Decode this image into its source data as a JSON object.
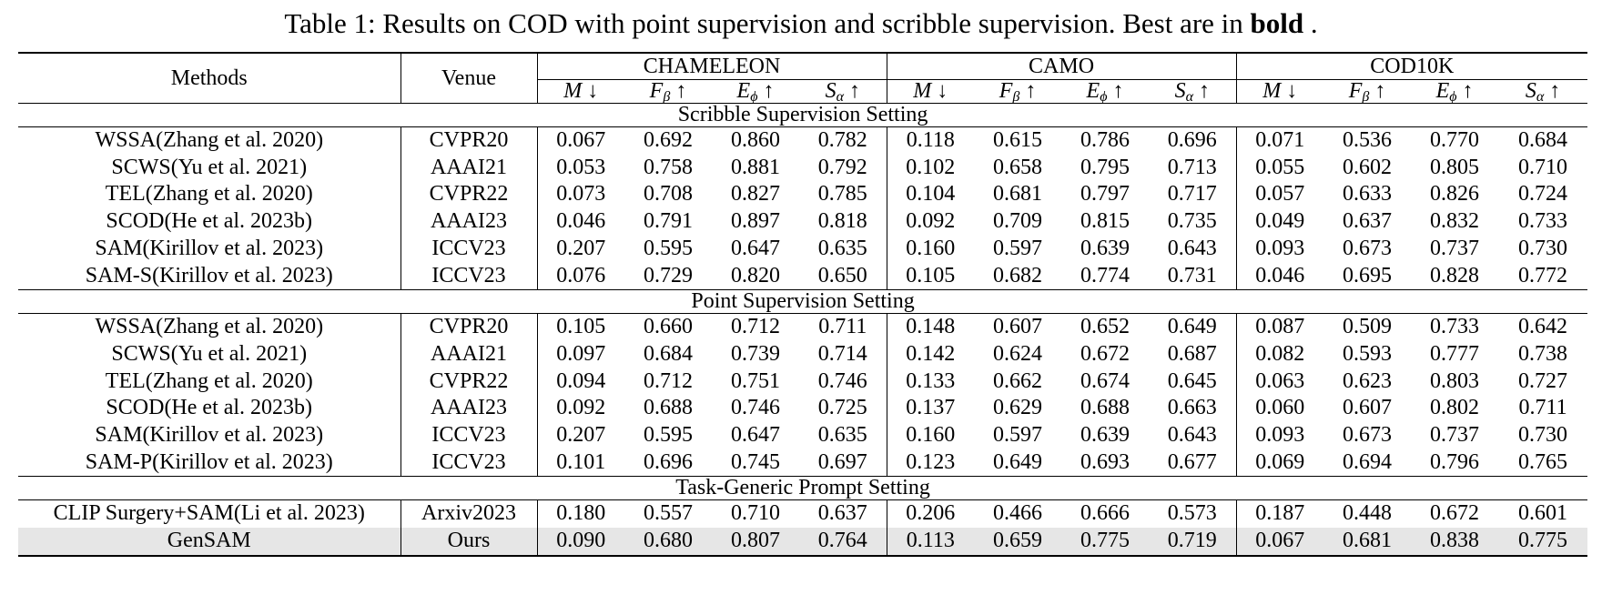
{
  "caption": {
    "prefix": "Table 1: Results on COD with point supervision and scribble supervision. Best are in",
    "bold_word": "bold",
    "suffix": " ."
  },
  "header": {
    "methods": "Methods",
    "venue": "Venue",
    "datasets": [
      "CHAMELEON",
      "CAMO",
      "COD10K"
    ],
    "metrics": [
      {
        "sym": "M",
        "sub": "",
        "arrow": "↓"
      },
      {
        "sym": "F",
        "sub": "β",
        "arrow": "↑"
      },
      {
        "sym": "E",
        "sub": "ϕ",
        "arrow": "↑"
      },
      {
        "sym": "S",
        "sub": "α",
        "arrow": "↑"
      }
    ]
  },
  "sections": [
    {
      "title": "Scribble Supervision Setting",
      "rows": [
        {
          "method": "WSSA(Zhang et al. 2020)",
          "venue": "CVPR20",
          "values": [
            "0.067",
            "0.692",
            "0.860",
            "0.782",
            "0.118",
            "0.615",
            "0.786",
            "0.696",
            "0.071",
            "0.536",
            "0.770",
            "0.684"
          ],
          "bold": []
        },
        {
          "method": "SCWS(Yu et al. 2021)",
          "venue": "AAAI21",
          "values": [
            "0.053",
            "0.758",
            "0.881",
            "0.792",
            "0.102",
            "0.658",
            "0.795",
            "0.713",
            "0.055",
            "0.602",
            "0.805",
            "0.710"
          ],
          "bold": []
        },
        {
          "method": "TEL(Zhang et al. 2020)",
          "venue": "CVPR22",
          "values": [
            "0.073",
            "0.708",
            "0.827",
            "0.785",
            "0.104",
            "0.681",
            "0.797",
            "0.717",
            "0.057",
            "0.633",
            "0.826",
            "0.724"
          ],
          "bold": []
        },
        {
          "method": "SCOD(He et al. 2023b)",
          "venue": "AAAI23",
          "values": [
            "0.046",
            "0.791",
            "0.897",
            "0.818",
            "0.092",
            "0.709",
            "0.815",
            "0.735",
            "0.049",
            "0.637",
            "0.832",
            "0.733"
          ],
          "bold": [
            0,
            1,
            2,
            3,
            4,
            5,
            6,
            7,
            10
          ]
        },
        {
          "method": "SAM(Kirillov et al. 2023)",
          "venue": "ICCV23",
          "values": [
            "0.207",
            "0.595",
            "0.647",
            "0.635",
            "0.160",
            "0.597",
            "0.639",
            "0.643",
            "0.093",
            "0.673",
            "0.737",
            "0.730"
          ],
          "bold": []
        },
        {
          "method": "SAM-S(Kirillov et al. 2023)",
          "venue": "ICCV23",
          "values": [
            "0.076",
            "0.729",
            "0.820",
            "0.650",
            "0.105",
            "0.682",
            "0.774",
            "0.731",
            "0.046",
            "0.695",
            "0.828",
            "0.772"
          ],
          "bold": [
            8,
            9,
            11
          ]
        }
      ]
    },
    {
      "title": "Point Supervision Setting",
      "rows": [
        {
          "method": "WSSA(Zhang et al. 2020)",
          "venue": "CVPR20",
          "values": [
            "0.105",
            "0.660",
            "0.712",
            "0.711",
            "0.148",
            "0.607",
            "0.652",
            "0.649",
            "0.087",
            "0.509",
            "0.733",
            "0.642"
          ],
          "bold": []
        },
        {
          "method": "SCWS(Yu et al. 2021)",
          "venue": "AAAI21",
          "values": [
            "0.097",
            "0.684",
            "0.739",
            "0.714",
            "0.142",
            "0.624",
            "0.672",
            "0.687",
            "0.082",
            "0.593",
            "0.777",
            "0.738"
          ],
          "bold": [
            7
          ]
        },
        {
          "method": "TEL(Zhang et al. 2020)",
          "venue": "CVPR22",
          "values": [
            "0.094",
            "0.712",
            "0.751",
            "0.746",
            "0.133",
            "0.662",
            "0.674",
            "0.645",
            "0.063",
            "0.623",
            "0.803",
            "0.727"
          ],
          "bold": [
            1,
            2,
            3,
            5,
            10
          ]
        },
        {
          "method": "SCOD(He et al. 2023b)",
          "venue": "AAAI23",
          "values": [
            "0.092",
            "0.688",
            "0.746",
            "0.725",
            "0.137",
            "0.629",
            "0.688",
            "0.663",
            "0.060",
            "0.607",
            "0.802",
            "0.711"
          ],
          "bold": [
            0,
            8
          ]
        },
        {
          "method": "SAM(Kirillov et al. 2023)",
          "venue": "ICCV23",
          "values": [
            "0.207",
            "0.595",
            "0.647",
            "0.635",
            "0.160",
            "0.597",
            "0.639",
            "0.643",
            "0.093",
            "0.673",
            "0.737",
            "0.730"
          ],
          "bold": []
        },
        {
          "method": "SAM-P(Kirillov et al. 2023)",
          "venue": "ICCV23",
          "values": [
            "0.101",
            "0.696",
            "0.745",
            "0.697",
            "0.123",
            "0.649",
            "0.693",
            "0.677",
            "0.069",
            "0.694",
            "0.796",
            "0.765"
          ],
          "bold": [
            4,
            6,
            9,
            11
          ]
        }
      ]
    },
    {
      "title": "Task-Generic Prompt Setting",
      "rows": [
        {
          "method": "CLIP Surgery+SAM(Li et al. 2023)",
          "venue": "Arxiv2023",
          "values": [
            "0.180",
            "0.557",
            "0.710",
            "0.637",
            "0.206",
            "0.466",
            "0.666",
            "0.573",
            "0.187",
            "0.448",
            "0.672",
            "0.601"
          ],
          "bold": []
        },
        {
          "method": "GenSAM",
          "venue": "Ours",
          "values": [
            "0.090",
            "0.680",
            "0.807",
            "0.764",
            "0.113",
            "0.659",
            "0.775",
            "0.719",
            "0.067",
            "0.681",
            "0.838",
            "0.775"
          ],
          "bold": [
            0,
            1,
            2,
            3,
            4,
            5,
            6,
            7,
            8,
            9,
            10,
            11
          ],
          "highlight": true
        }
      ]
    }
  ]
}
